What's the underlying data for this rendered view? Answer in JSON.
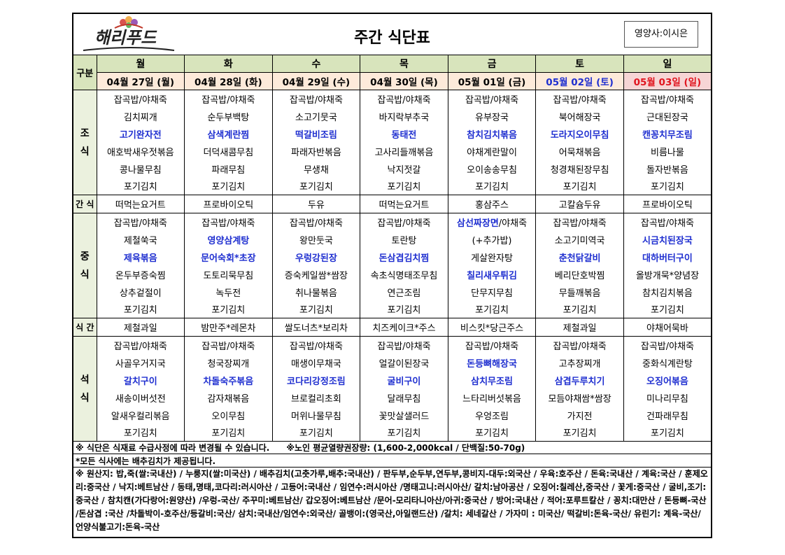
{
  "header": {
    "logo": "해리푸드",
    "title": "주간 식단표",
    "dietitian": "영양사:이시은"
  },
  "table": {
    "corner": "구분",
    "days": [
      "월",
      "화",
      "수",
      "목",
      "금",
      "토",
      "일"
    ],
    "dates": [
      "04월 27일 (월)",
      "04월 28일 (화)",
      "04월 29일 (수)",
      "04월 30일 (목)",
      "05월 01일 (금)",
      "05월 02일 (토)",
      "05월 03일 (일)"
    ],
    "date_colors": [
      "#000000",
      "#000000",
      "#000000",
      "#000000",
      "#000000",
      "#1f2fd0",
      "#e0141e"
    ],
    "date_backgrounds": [
      "#fdeada",
      "#fdeada",
      "#fdeada",
      "#fdeada",
      "#fdeada",
      "#fdeada",
      "#f6d5d5"
    ],
    "highlight_color": "#1f2fd0",
    "sections": [
      {
        "label": "조 식",
        "rows": [
          [
            "잡곡밥/야채죽",
            "잡곡밥/야채죽",
            "잡곡밥/야채죽",
            "잡곡밥/야채죽",
            "잡곡밥/야채죽",
            "잡곡밥/야채죽",
            "잡곡밥/야채죽"
          ],
          [
            "김치찌개",
            "순두부백탕",
            "소고기뭇국",
            "바지락부추국",
            "유부장국",
            "북어해장국",
            "근대된장국"
          ],
          [
            {
              "text": "고기완자전",
              "bold": true
            },
            {
              "text": "삼색계란찜",
              "bold": true
            },
            {
              "text": "떡갈비조림",
              "bold": true
            },
            {
              "text": "동태전",
              "bold": true
            },
            {
              "text": "참치김치볶음",
              "bold": true
            },
            {
              "text": "도라지오이무침",
              "bold": true
            },
            {
              "text": "캔꽁치무조림",
              "bold": true
            }
          ],
          [
            "애호박새우젓볶음",
            "더덕새콤무침",
            "파래자반볶음",
            "고사리들깨볶음",
            "야채계란말이",
            "어묵채볶음",
            "비름나물"
          ],
          [
            "콩나물무침",
            "파래무침",
            "무생채",
            "낙지젓갈",
            "오이송송무침",
            "청경채된장무침",
            "돌자반볶음"
          ],
          [
            "포기김치",
            "포기김치",
            "포기김치",
            "포기김치",
            "포기김치",
            "포기김치",
            "포기김치"
          ]
        ]
      },
      {
        "label": "간 식",
        "rows": [
          [
            "떠먹는요거트",
            "프로바이오틱",
            "두유",
            "떠먹는요거트",
            "홍삼주스",
            "고칼슘두유",
            "프로바이오틱"
          ]
        ]
      },
      {
        "label": "중 식",
        "rows": [
          [
            "잡곡밥/야채죽",
            "잡곡밥/야채죽",
            "잡곡밥/야채죽",
            "잡곡밥/야채죽",
            [
              {
                "text": "삼선짜장면",
                "bold": true
              },
              {
                "text": "/야채죽"
              }
            ],
            "잡곡밥/야채죽",
            "잡곡밥/야채죽"
          ],
          [
            "제철쑥국",
            {
              "text": "영양삼계탕",
              "bold": true
            },
            "왕만둣국",
            "토란탕",
            "(+추가밥)",
            "소고기미역국",
            {
              "text": "시금치된장국",
              "bold": true
            }
          ],
          [
            {
              "text": "제육볶음",
              "bold": true
            },
            {
              "text": "문어숙회*초장",
              "bold": true
            },
            {
              "text": "우렁강된장",
              "bold": true
            },
            {
              "text": "돈삼겹김치찜",
              "bold": true
            },
            "게살완자탕",
            {
              "text": "춘천닭갈비",
              "bold": true
            },
            {
              "text": "대하버터구이",
              "bold": true
            }
          ],
          [
            "온두부증숙찜",
            "도토리묵무침",
            "증숙케일쌈*쌈장",
            "속초식명태조무침",
            {
              "text": "칠리새우튀김",
              "bold": true
            },
            "베리단호박찜",
            "올방개묵*양념장"
          ],
          [
            "상추겉절이",
            "녹두전",
            "취나물볶음",
            "연근조림",
            "단무지무침",
            "무들깨볶음",
            "참치김치볶음"
          ],
          [
            "포기김치",
            "포기김치",
            "포기김치",
            "포기김치",
            "포기김치",
            "포기김치",
            "포기김치"
          ]
        ]
      },
      {
        "label": "식 간",
        "rows": [
          [
            "제철과일",
            "밤만주*레몬차",
            "쌀도너츠*보리차",
            "치즈케이크*주스",
            "비스킷*당근주스",
            "제철과일",
            "야채어묵바"
          ]
        ]
      },
      {
        "label": "석 식",
        "rows": [
          [
            "잡곡밥/야채죽",
            "잡곡밥/야채죽",
            "잡곡밥/야채죽",
            "잡곡밥/야채죽",
            "잡곡밥/야채죽",
            "잡곡밥/야채죽",
            "잡곡밥/야채죽"
          ],
          [
            "사골우거지국",
            "청국장찌개",
            "매생이무채국",
            "얼갈이된장국",
            {
              "text": "돈등뼈해장국",
              "bold": true
            },
            "고추장찌개",
            "중화식계란탕"
          ],
          [
            {
              "text": "갈치구이",
              "bold": true
            },
            {
              "text": "차돌숙주볶음",
              "bold": true
            },
            {
              "text": "코다리강정조림",
              "bold": true
            },
            {
              "text": "굴비구이",
              "bold": true
            },
            {
              "text": "삼치무조림",
              "bold": true
            },
            {
              "text": "삼겹두루치기",
              "bold": true
            },
            {
              "text": "오징어볶음",
              "bold": true
            }
          ],
          [
            "새송이버섯전",
            "감자채볶음",
            "브로컬리초회",
            "달래무침",
            "느타리버섯볶음",
            "모듬야채쌈*쌈장",
            "미나리무침"
          ],
          [
            "알새우컬리볶음",
            "오이무침",
            "머위나물무침",
            "꽃맛살샐러드",
            "우엉조림",
            "가지전",
            "건파래무침"
          ],
          [
            "포기김치",
            "포기김치",
            "포기김치",
            "포기김치",
            "포기김치",
            "포기김치",
            "포기김치"
          ]
        ]
      }
    ]
  },
  "notes": {
    "change": "※ 식단은 식재료 수급사정에 따라 변경될 수 있습니다.",
    "calories": "※노인 평균열량권장량: (1,600-2,000kcal / 단백질:50-70g)",
    "kimchi": "*모든 식사에는 배추김치가 제공됩니다.",
    "origin": "※ 원산지: 밥,죽(쌀:국내산) / 누룽지(쌀:미국산) / 배추김치(고춧가루,배추:국내산) / 판두부,순두부,연두부,콩비지-대두:외국산 / 우육:호주산 / 돈육:국내산 / 계육:국산 / 훈제오리:중국산 / 낙지:베트남산 / 동태,명태,코다리:러시아산 / 고등어:국내산 / 임연수:러시아산 /명태고니:러시아산/ 갈치:남아공산 / 오징어:칠레산,중국산 / 꽃게:중국산 / 굴비,조기:중국산 / 참치캔(가다랑어:원양산) /우렁-국산/ 주꾸미:베트남산/ 갑오징어:베트남산 /문어-모리타니아산/아귀:중국산 / 방어:국내산 / 적어:포루트칼산 / 꽁치:대만산 / 돈등뼈-국산 /돈삼겹 :국산 /차돌박이-호주산/등갈비:국산/ 삼치:국내산/임연수:외국산/ 골뱅이:(영국산,아일랜드산) /갈치: 세네갈산 / 가자미 : 미국산/ 떡갈비:돈육-국산/ 유린기: 계육-국산/ 언양식불고기:돈육-국산"
  }
}
